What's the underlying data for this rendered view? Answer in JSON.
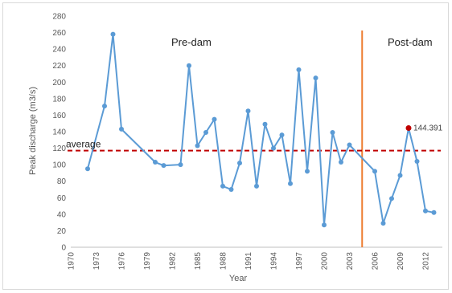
{
  "chart_data": {
    "type": "line",
    "xlabel": "Year",
    "ylabel": "Peak discharge (m3/s)",
    "xlim": [
      1970,
      2014
    ],
    "ylim": [
      0,
      280
    ],
    "x_ticks": [
      1970,
      1973,
      1976,
      1979,
      1982,
      1985,
      1988,
      1991,
      1994,
      1997,
      2000,
      2003,
      2006,
      2009,
      2012
    ],
    "y_ticks": [
      0,
      20,
      40,
      60,
      80,
      100,
      120,
      140,
      160,
      180,
      200,
      220,
      240,
      260,
      280
    ],
    "series": [
      {
        "color": "#5b9bd5",
        "points": [
          [
            1972,
            95
          ],
          [
            1974,
            171
          ],
          [
            1975,
            258
          ],
          [
            1976,
            143
          ],
          [
            1980,
            103
          ],
          [
            1981,
            99
          ],
          [
            1983,
            100
          ],
          [
            1984,
            220
          ],
          [
            1985,
            123
          ],
          [
            1986,
            139
          ],
          [
            1987,
            155
          ],
          [
            1988,
            74
          ],
          [
            1989,
            70
          ],
          [
            1990,
            102
          ],
          [
            1991,
            165
          ],
          [
            1992,
            74
          ],
          [
            1993,
            149
          ],
          [
            1994,
            120
          ],
          [
            1995,
            136
          ],
          [
            1996,
            77
          ],
          [
            1997,
            215
          ],
          [
            1998,
            92
          ],
          [
            1999,
            205
          ],
          [
            2000,
            27
          ],
          [
            2001,
            139
          ],
          [
            2002,
            103
          ],
          [
            2003,
            124
          ],
          [
            2006,
            92
          ],
          [
            2007,
            29
          ],
          [
            2008,
            59
          ],
          [
            2009,
            87
          ],
          [
            2010,
            144.391
          ],
          [
            2011,
            104
          ],
          [
            2012,
            44
          ],
          [
            2013,
            42
          ]
        ]
      }
    ],
    "average": {
      "label": "average",
      "value": 117,
      "color": "#c00000"
    },
    "dam_line": {
      "x": 2004.5,
      "color": "#ed7d31"
    },
    "regions": {
      "pre": "Pre-dam",
      "post": "Post-dam"
    },
    "highlight": {
      "x": 2010,
      "y": 144.391,
      "label": "144.391",
      "color": "#c00000"
    },
    "grid": false
  }
}
